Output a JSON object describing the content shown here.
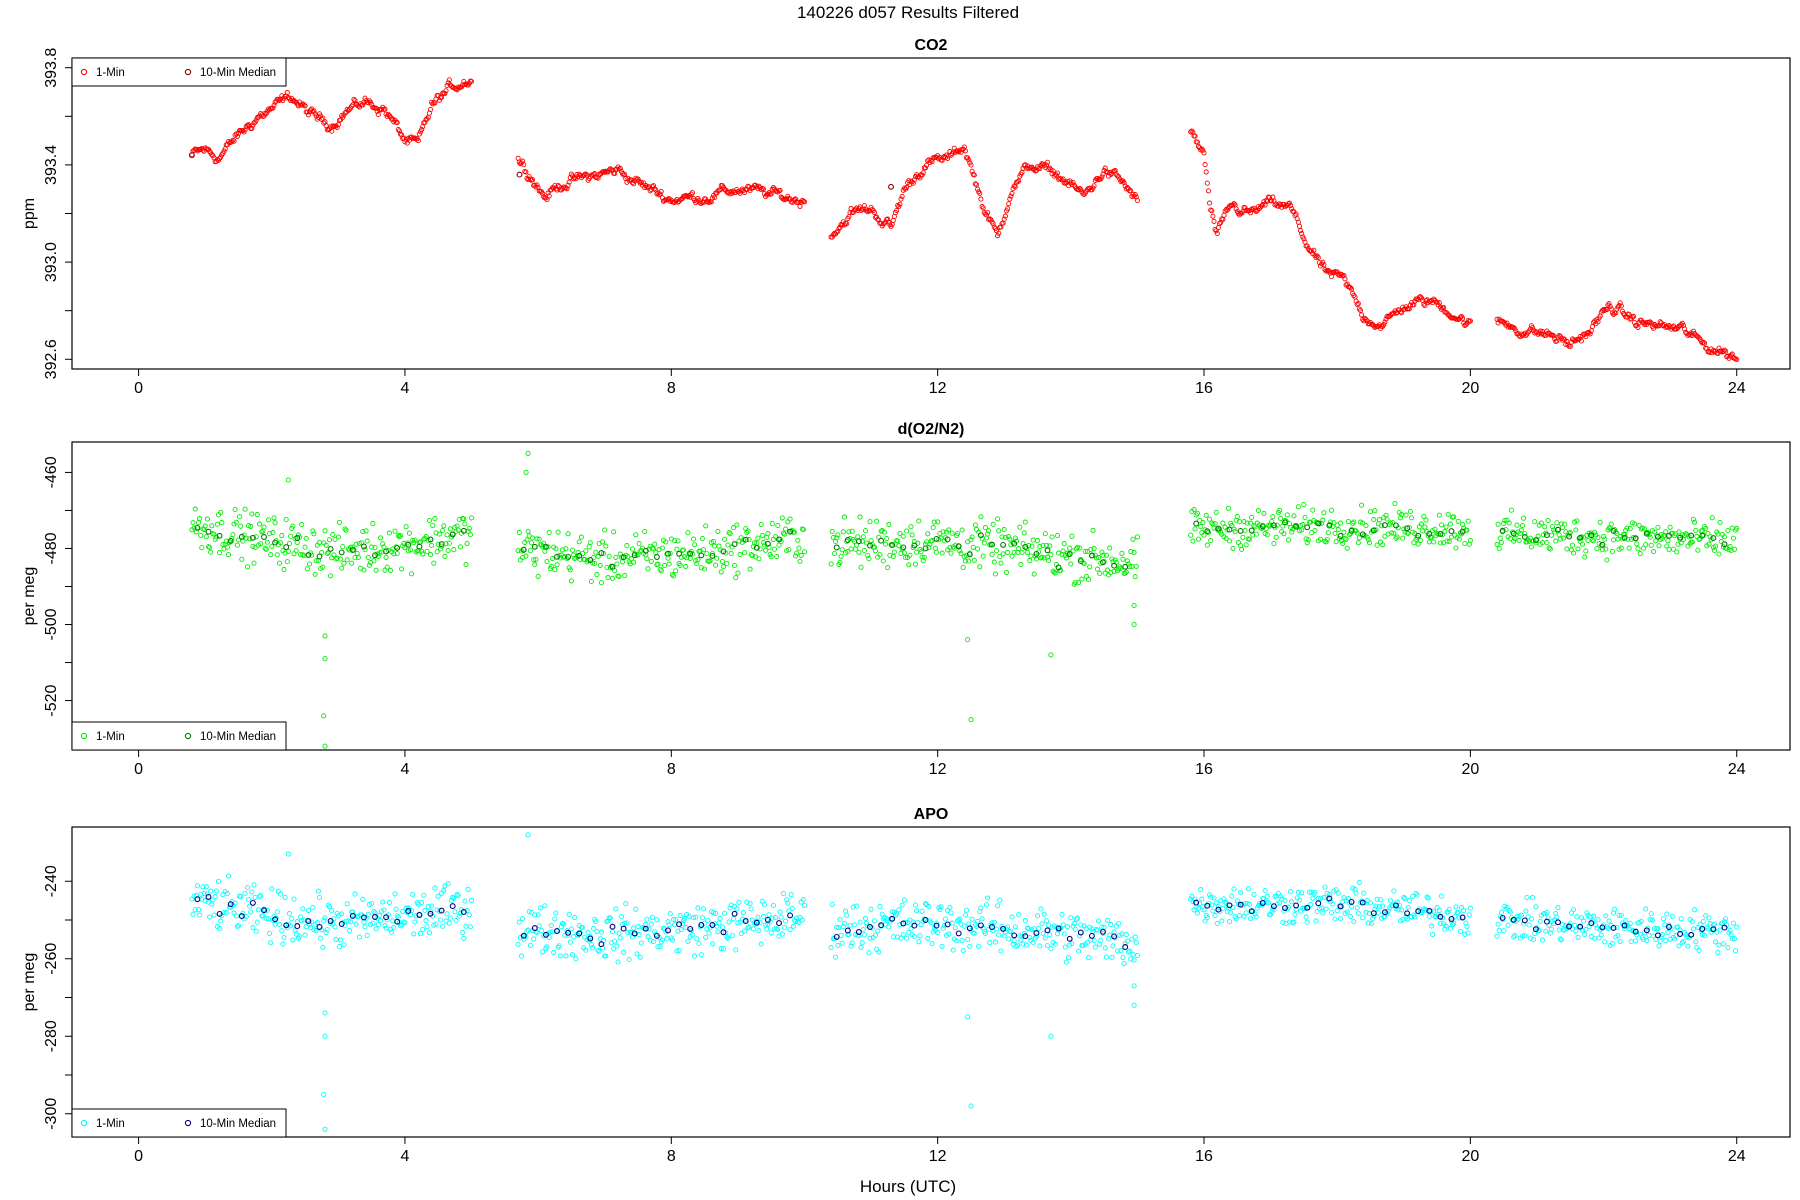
{
  "figure": {
    "title": "140226   d057   Results Filtered",
    "xlabel": "Hours (UTC)"
  },
  "chart_data": [
    {
      "type": "scatter",
      "title": "CO2",
      "xlabel": "",
      "ylabel": "ppm",
      "xlim": [
        -1.0,
        24.8
      ],
      "ylim": [
        392.56,
        393.84
      ],
      "xticks": [
        0,
        4,
        8,
        12,
        16,
        20,
        24
      ],
      "yticks": [
        392.6,
        393.0,
        393.4,
        393.8
      ],
      "yticklabels": [
        "392.6",
        "393.0",
        "393.4",
        "393.8"
      ],
      "legend_position": "top-left",
      "series": [
        {
          "name": "1-Min",
          "color": "#ff0000",
          "marker": "open-circle",
          "segments": [
            {
              "x_range": [
                0.8,
                5.0
              ],
              "knots": [
                [
                  0.8,
                  393.44
                ],
                [
                  1.0,
                  393.46
                ],
                [
                  1.2,
                  393.43
                ],
                [
                  1.5,
                  393.52
                ],
                [
                  1.8,
                  393.6
                ],
                [
                  2.0,
                  393.63
                ],
                [
                  2.3,
                  393.68
                ],
                [
                  2.6,
                  393.6
                ],
                [
                  2.9,
                  393.57
                ],
                [
                  3.1,
                  393.62
                ],
                [
                  3.4,
                  393.66
                ],
                [
                  3.7,
                  393.63
                ],
                [
                  4.0,
                  393.5
                ],
                [
                  4.2,
                  393.48
                ],
                [
                  4.4,
                  393.64
                ],
                [
                  4.7,
                  393.72
                ],
                [
                  5.0,
                  393.76
                ]
              ]
            },
            {
              "x_range": [
                5.7,
                10.0
              ],
              "knots": [
                [
                  5.7,
                  393.42
                ],
                [
                  5.9,
                  393.36
                ],
                [
                  6.1,
                  393.27
                ],
                [
                  6.4,
                  393.33
                ],
                [
                  6.8,
                  393.35
                ],
                [
                  7.2,
                  393.38
                ],
                [
                  7.6,
                  393.31
                ],
                [
                  8.0,
                  393.26
                ],
                [
                  8.5,
                  393.27
                ],
                [
                  9.0,
                  393.3
                ],
                [
                  9.5,
                  393.28
                ],
                [
                  10.0,
                  393.25
                ]
              ]
            },
            {
              "x_range": [
                10.4,
                15.0
              ],
              "knots": [
                [
                  10.4,
                  393.12
                ],
                [
                  10.7,
                  393.2
                ],
                [
                  11.0,
                  393.22
                ],
                [
                  11.3,
                  393.14
                ],
                [
                  11.5,
                  393.3
                ],
                [
                  11.8,
                  393.4
                ],
                [
                  12.2,
                  393.43
                ],
                [
                  12.4,
                  393.48
                ],
                [
                  12.7,
                  393.22
                ],
                [
                  12.9,
                  393.1
                ],
                [
                  13.1,
                  393.3
                ],
                [
                  13.4,
                  393.4
                ],
                [
                  13.8,
                  393.36
                ],
                [
                  14.2,
                  393.27
                ],
                [
                  14.5,
                  393.38
                ],
                [
                  14.8,
                  393.32
                ],
                [
                  15.0,
                  393.25
                ]
              ]
            },
            {
              "x_range": [
                15.8,
                20.0
              ],
              "knots": [
                [
                  15.8,
                  393.53
                ],
                [
                  16.0,
                  393.44
                ],
                [
                  16.1,
                  393.2
                ],
                [
                  16.2,
                  393.1
                ],
                [
                  16.4,
                  393.23
                ],
                [
                  16.7,
                  393.2
                ],
                [
                  17.0,
                  393.24
                ],
                [
                  17.3,
                  393.22
                ],
                [
                  17.5,
                  393.1
                ],
                [
                  17.8,
                  392.96
                ],
                [
                  18.1,
                  392.92
                ],
                [
                  18.4,
                  392.78
                ],
                [
                  18.7,
                  392.74
                ],
                [
                  19.0,
                  392.82
                ],
                [
                  19.4,
                  392.84
                ],
                [
                  19.7,
                  392.8
                ],
                [
                  20.0,
                  392.74
                ]
              ]
            },
            {
              "x_range": [
                20.4,
                24.0
              ],
              "knots": [
                [
                  20.4,
                  392.76
                ],
                [
                  20.8,
                  392.72
                ],
                [
                  21.2,
                  392.7
                ],
                [
                  21.5,
                  392.66
                ],
                [
                  21.8,
                  392.72
                ],
                [
                  22.1,
                  392.82
                ],
                [
                  22.5,
                  392.75
                ],
                [
                  22.8,
                  392.74
                ],
                [
                  23.2,
                  392.72
                ],
                [
                  23.5,
                  392.66
                ],
                [
                  23.8,
                  392.63
                ],
                [
                  24.0,
                  392.61
                ]
              ]
            }
          ]
        },
        {
          "name": "10-Min Median",
          "color": "#8b0000",
          "marker": "open-circle",
          "points": [
            [
              0.8,
              393.44
            ],
            [
              5.72,
              393.36
            ],
            [
              11.3,
              393.31
            ]
          ]
        }
      ]
    },
    {
      "type": "scatter",
      "title": "d(O2/N2)",
      "xlabel": "",
      "ylabel": "per meg",
      "xlim": [
        -1.0,
        24.8
      ],
      "ylim": [
        -533.0,
        -452.0
      ],
      "xticks": [
        0,
        4,
        8,
        12,
        16,
        20,
        24
      ],
      "yticks": [
        -460,
        -480,
        -500,
        -520
      ],
      "yticklabels": [
        "-460",
        "-480",
        "-500",
        "-520"
      ],
      "legend_position": "bottom-left",
      "series": [
        {
          "name": "1-Min",
          "color": "#00ee00",
          "marker": "open-circle",
          "segments": [
            {
              "x_range": [
                0.8,
                5.0
              ],
              "knots": [
                [
                  0.8,
                  -474.0
                ],
                [
                  2.0,
                  -478.0
                ],
                [
                  3.0,
                  -481.0
                ],
                [
                  4.0,
                  -479.0
                ],
                [
                  5.0,
                  -476.0
                ]
              ],
              "scatter": 4.5
            },
            {
              "x_range": [
                5.7,
                10.0
              ],
              "knots": [
                [
                  5.7,
                  -480.0
                ],
                [
                  7.0,
                  -483.0
                ],
                [
                  8.5,
                  -481.0
                ],
                [
                  10.0,
                  -477.0
                ]
              ],
              "scatter": 4.5
            },
            {
              "x_range": [
                10.4,
                15.0
              ],
              "knots": [
                [
                  10.4,
                  -479.0
                ],
                [
                  12.0,
                  -478.0
                ],
                [
                  13.5,
                  -481.0
                ],
                [
                  15.0,
                  -484.0
                ]
              ],
              "scatter": 4.5
            },
            {
              "x_range": [
                15.8,
                20.0
              ],
              "knots": [
                [
                  15.8,
                  -475.0
                ],
                [
                  18.0,
                  -474.0
                ],
                [
                  20.0,
                  -475.0
                ]
              ],
              "scatter": 3.5
            },
            {
              "x_range": [
                20.4,
                24.0
              ],
              "knots": [
                [
                  20.4,
                  -476.0
                ],
                [
                  22.0,
                  -477.0
                ],
                [
                  24.0,
                  -478.0
                ]
              ],
              "scatter": 3.5
            }
          ],
          "outliers": [
            [
              2.25,
              -462.0
            ],
            [
              2.8,
              -503.0
            ],
            [
              2.8,
              -509.0
            ],
            [
              2.78,
              -524.0
            ],
            [
              2.8,
              -532.0
            ],
            [
              5.85,
              -455.0
            ],
            [
              5.82,
              -460.0
            ],
            [
              12.45,
              -504.0
            ],
            [
              12.5,
              -525.0
            ],
            [
              13.7,
              -508.0
            ],
            [
              14.95,
              -495.0
            ],
            [
              14.95,
              -500.0
            ]
          ]
        },
        {
          "name": "10-Min Median",
          "color": "#007700",
          "marker": "open-circle",
          "median_of": 0
        }
      ]
    },
    {
      "type": "scatter",
      "title": "APO",
      "xlabel": "Hours (UTC)",
      "ylabel": "per meg",
      "xlim": [
        -1.0,
        24.8
      ],
      "ylim": [
        -306.0,
        -226.0
      ],
      "xticks": [
        0,
        4,
        8,
        12,
        16,
        20,
        24
      ],
      "yticks": [
        -240,
        -260,
        -280,
        -300
      ],
      "yticklabels": [
        "-240",
        "-260",
        "-280",
        "-300"
      ],
      "legend_position": "bottom-left",
      "series": [
        {
          "name": "1-Min",
          "color": "#00ffff",
          "marker": "open-circle",
          "segments": [
            {
              "x_range": [
                0.8,
                5.0
              ],
              "knots": [
                [
                  0.8,
                  -245.0
                ],
                [
                  2.0,
                  -249.0
                ],
                [
                  3.0,
                  -251.0
                ],
                [
                  4.0,
                  -249.0
                ],
                [
                  5.0,
                  -247.0
                ]
              ],
              "scatter": 4.5
            },
            {
              "x_range": [
                5.7,
                10.0
              ],
              "knots": [
                [
                  5.7,
                  -252.0
                ],
                [
                  7.0,
                  -254.0
                ],
                [
                  8.5,
                  -252.0
                ],
                [
                  10.0,
                  -249.0
                ]
              ],
              "scatter": 4.5
            },
            {
              "x_range": [
                10.4,
                15.0
              ],
              "knots": [
                [
                  10.4,
                  -252.0
                ],
                [
                  12.0,
                  -251.0
                ],
                [
                  13.5,
                  -253.0
                ],
                [
                  15.0,
                  -256.0
                ]
              ],
              "scatter": 4.5
            },
            {
              "x_range": [
                15.8,
                20.0
              ],
              "knots": [
                [
                  15.8,
                  -246.0
                ],
                [
                  18.0,
                  -246.0
                ],
                [
                  20.0,
                  -249.0
                ]
              ],
              "scatter": 3.5
            },
            {
              "x_range": [
                20.4,
                24.0
              ],
              "knots": [
                [
                  20.4,
                  -250.0
                ],
                [
                  22.0,
                  -252.0
                ],
                [
                  24.0,
                  -253.0
                ]
              ],
              "scatter": 3.5
            }
          ],
          "outliers": [
            [
              2.25,
              -233.0
            ],
            [
              2.8,
              -274.0
            ],
            [
              2.8,
              -280.0
            ],
            [
              2.78,
              -295.0
            ],
            [
              2.8,
              -304.0
            ],
            [
              5.85,
              -228.0
            ],
            [
              12.45,
              -275.0
            ],
            [
              12.5,
              -298.0
            ],
            [
              13.7,
              -280.0
            ],
            [
              14.95,
              -267.0
            ],
            [
              14.95,
              -272.0
            ]
          ]
        },
        {
          "name": "10-Min Median",
          "color": "#000080",
          "marker": "open-circle",
          "median_of": 0
        }
      ]
    }
  ]
}
